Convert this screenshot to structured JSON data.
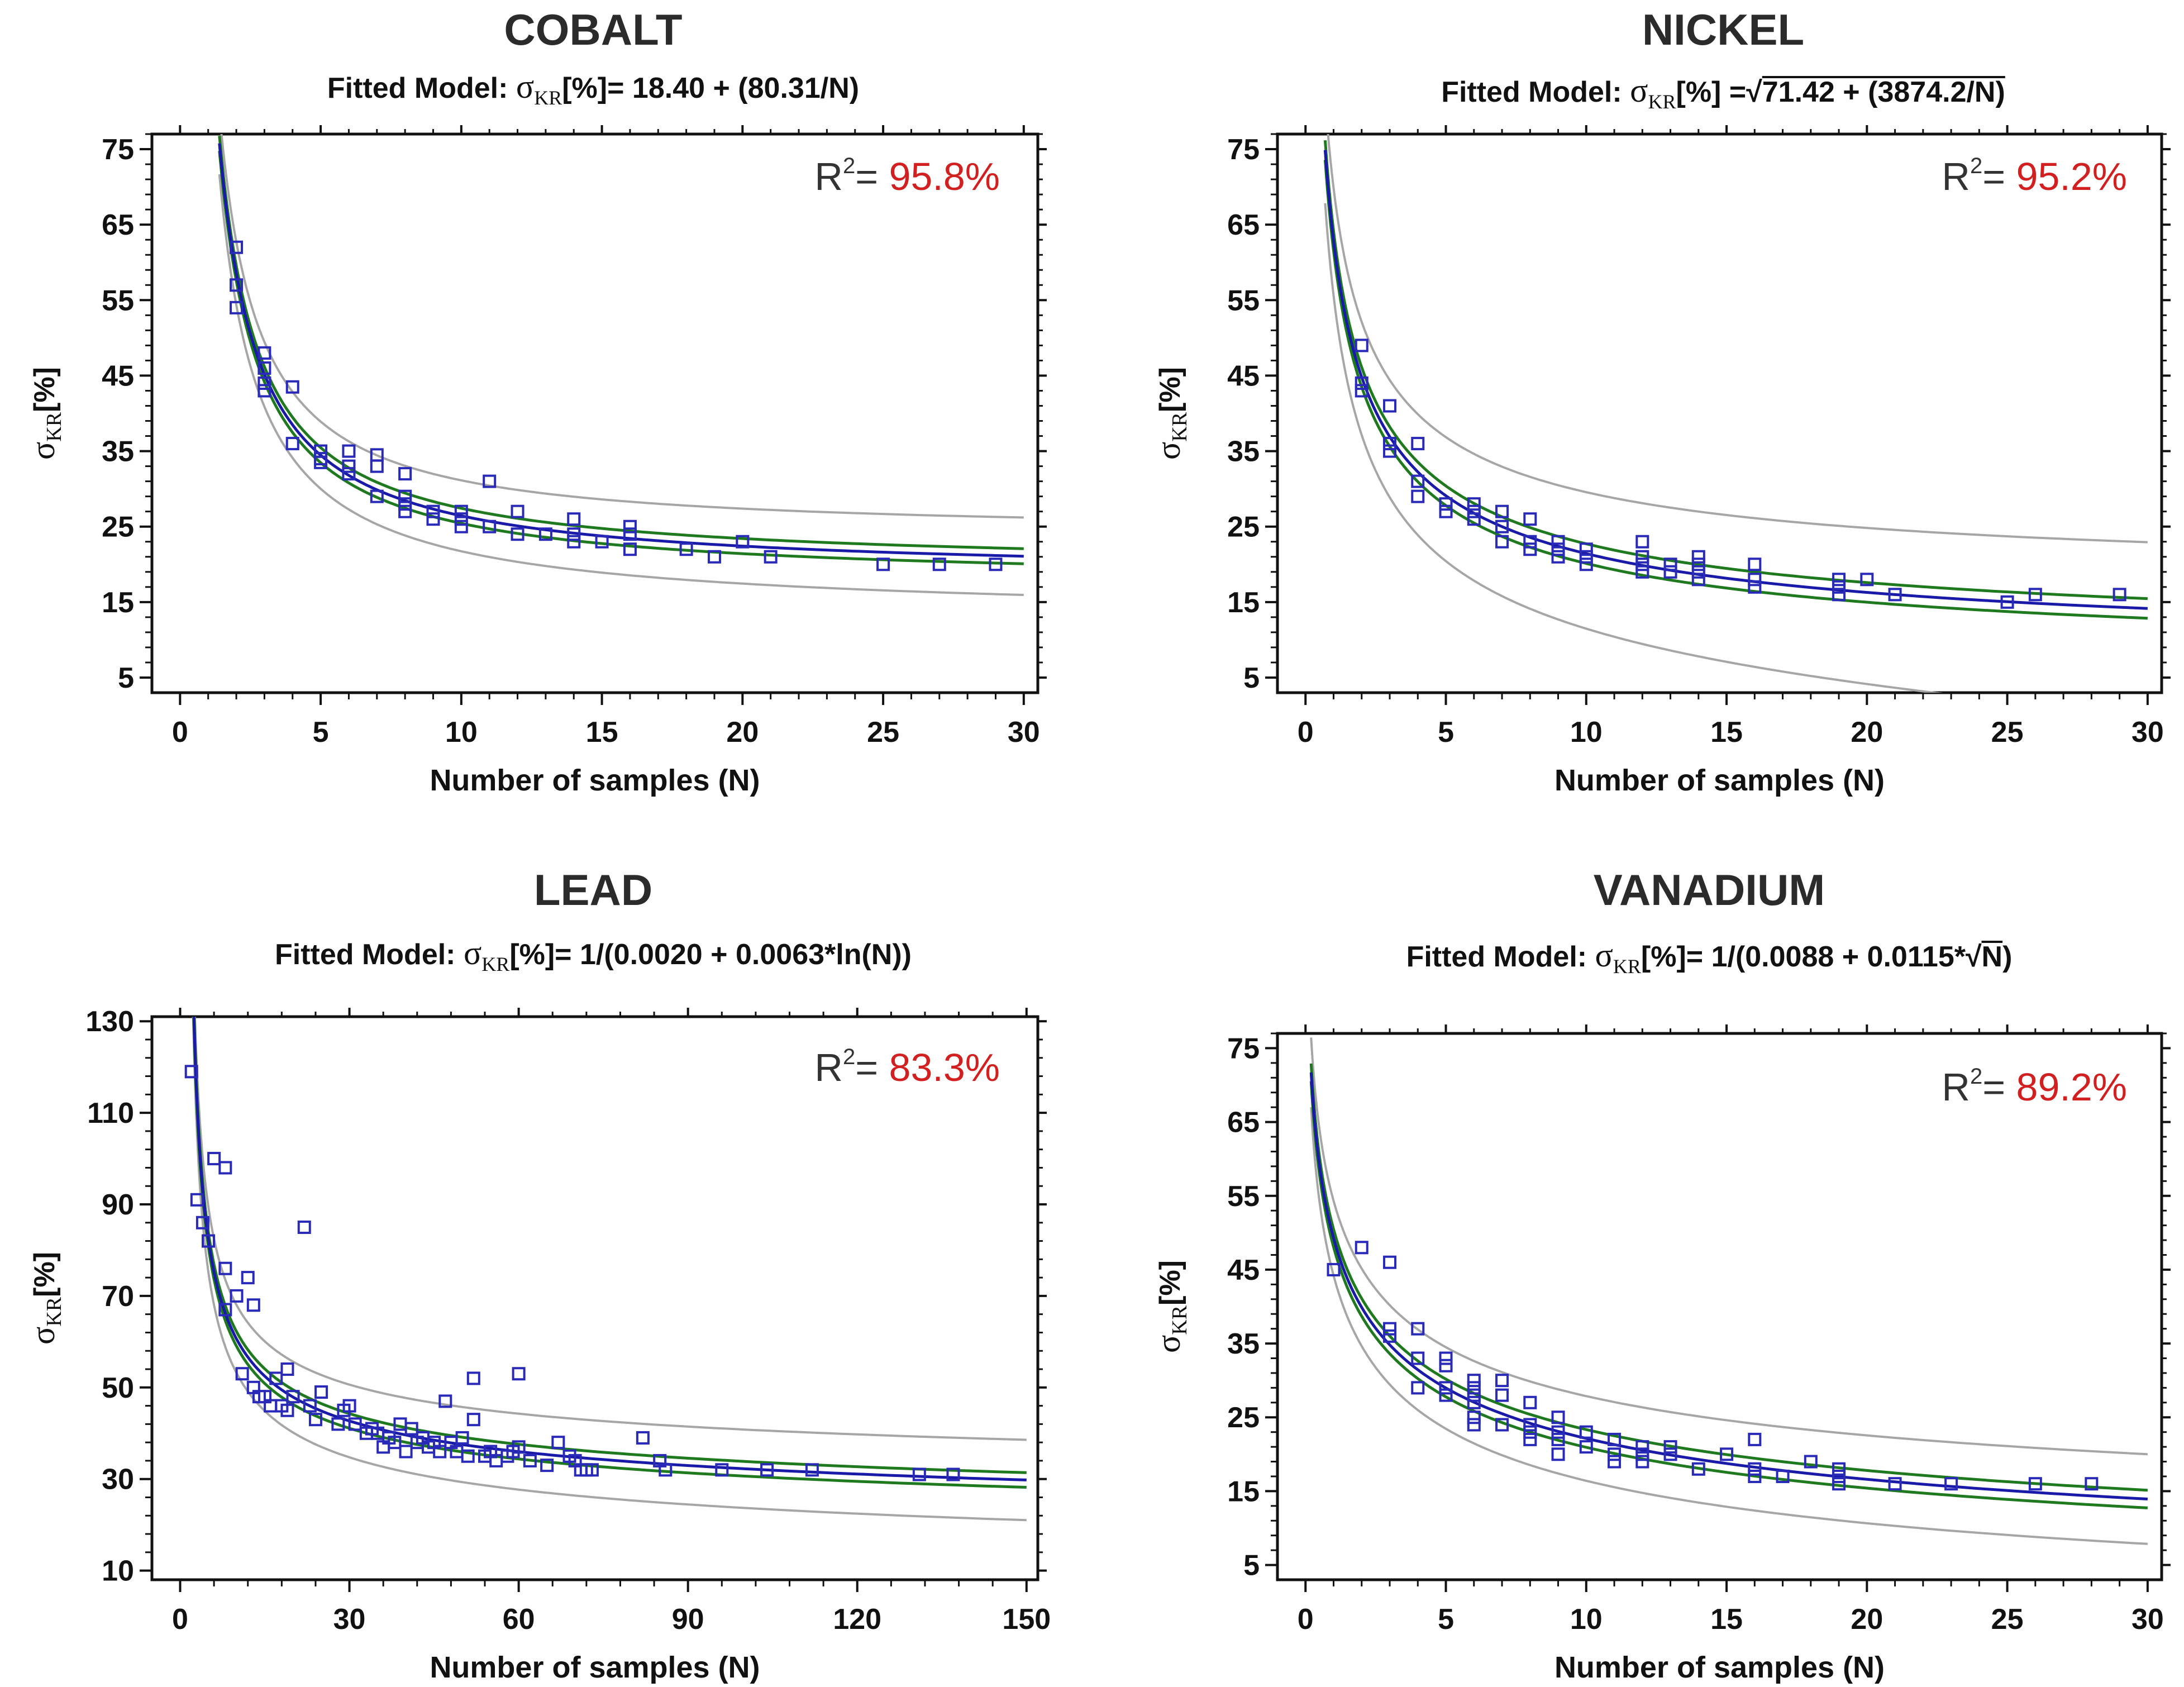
{
  "colors": {
    "fit": "#1a1aa8",
    "ci": "#1f7a1f",
    "pi": "#a6a6a6",
    "points": "#2a2ab8",
    "r2_value": "#d21f1f",
    "text": "#111111"
  },
  "chart_data": [
    {
      "type": "scatter",
      "title": "COBALT",
      "model_prefix": "Fitted Model: ",
      "sigma": "σ",
      "sub": "KR",
      "model_mid": "[%]= 18.40 + (80.31/N)",
      "model_rad": "",
      "model_tail": "",
      "r2_label": "R",
      "r2_sup": "2",
      "r2_eq": "= ",
      "r2_value": "95.8%",
      "xlabel": "Number of samples (N)",
      "ylabel_sigma": "σ",
      "ylabel_sub": "KR",
      "ylabel_rest": "[%]",
      "xlim": [
        -1,
        30.5
      ],
      "ylim": [
        3,
        77
      ],
      "xticks": [
        0,
        5,
        10,
        15,
        20,
        25,
        30
      ],
      "yticks": [
        5,
        15,
        25,
        35,
        45,
        55,
        65,
        75
      ],
      "fit": {
        "type": "inv",
        "a": 18.4,
        "b": 80.31,
        "x0": 1.4,
        "x1": 30
      },
      "ci_width": 1.0,
      "pi_width": 3.8,
      "points": [
        [
          2,
          62
        ],
        [
          2,
          57
        ],
        [
          2,
          54
        ],
        [
          3,
          48
        ],
        [
          3,
          46
        ],
        [
          3,
          44
        ],
        [
          3,
          43
        ],
        [
          4,
          43.5
        ],
        [
          4,
          36
        ],
        [
          5,
          35
        ],
        [
          5,
          34
        ],
        [
          5,
          33.5
        ],
        [
          6,
          35
        ],
        [
          6,
          33
        ],
        [
          6,
          32
        ],
        [
          7,
          34.5
        ],
        [
          7,
          33
        ],
        [
          7,
          29
        ],
        [
          8,
          32
        ],
        [
          8,
          29
        ],
        [
          8,
          28
        ],
        [
          8,
          27
        ],
        [
          9,
          27
        ],
        [
          9,
          26
        ],
        [
          10,
          27
        ],
        [
          10,
          26
        ],
        [
          10,
          25
        ],
        [
          11,
          31
        ],
        [
          11,
          25
        ],
        [
          12,
          27
        ],
        [
          12,
          24
        ],
        [
          13,
          24
        ],
        [
          14,
          26
        ],
        [
          14,
          24
        ],
        [
          14,
          23
        ],
        [
          15,
          23
        ],
        [
          16,
          25
        ],
        [
          16,
          24
        ],
        [
          16,
          22
        ],
        [
          18,
          22
        ],
        [
          19,
          21
        ],
        [
          20,
          23
        ],
        [
          21,
          21
        ],
        [
          25,
          20
        ],
        [
          27,
          20
        ],
        [
          29,
          20
        ]
      ]
    },
    {
      "type": "scatter",
      "title": "NICKEL",
      "model_prefix": "Fitted Model: ",
      "sigma": "σ",
      "sub": "KR",
      "model_mid": "[%] =",
      "model_rad": "71.42 + (3874.2/N)",
      "model_tail": "",
      "r2_label": "R",
      "r2_sup": "2",
      "r2_eq": "= ",
      "r2_value": "95.2%",
      "xlabel": "Number of samples (N)",
      "ylabel_sigma": "σ",
      "ylabel_sub": "KR",
      "ylabel_rest": "[%]",
      "xlim": [
        -1,
        30.5
      ],
      "ylim": [
        3,
        77
      ],
      "xticks": [
        0,
        5,
        10,
        15,
        20,
        25,
        30
      ],
      "yticks": [
        5,
        15,
        25,
        35,
        45,
        55,
        65,
        75
      ],
      "fit": {
        "type": "sqrt",
        "a": 71.42,
        "b": 3874.2,
        "x0": 0.7,
        "x1": 30
      },
      "ci_width": 1.3,
      "pi_width": 6.5,
      "points": [
        [
          2,
          49
        ],
        [
          2,
          44
        ],
        [
          2,
          43
        ],
        [
          3,
          41
        ],
        [
          3,
          36
        ],
        [
          3,
          35
        ],
        [
          4,
          36
        ],
        [
          4,
          31
        ],
        [
          4,
          29
        ],
        [
          5,
          28
        ],
        [
          5,
          27
        ],
        [
          6,
          28
        ],
        [
          6,
          27
        ],
        [
          6,
          26
        ],
        [
          7,
          27
        ],
        [
          7,
          25
        ],
        [
          7,
          23
        ],
        [
          8,
          26
        ],
        [
          8,
          23
        ],
        [
          8,
          22
        ],
        [
          9,
          23
        ],
        [
          9,
          22
        ],
        [
          9,
          21
        ],
        [
          10,
          22
        ],
        [
          10,
          21
        ],
        [
          10,
          20
        ],
        [
          12,
          23
        ],
        [
          12,
          21
        ],
        [
          12,
          20
        ],
        [
          12,
          19
        ],
        [
          13,
          20
        ],
        [
          13,
          19
        ],
        [
          14,
          21
        ],
        [
          14,
          20
        ],
        [
          14,
          19
        ],
        [
          14,
          18
        ],
        [
          16,
          20
        ],
        [
          16,
          18
        ],
        [
          16,
          17
        ],
        [
          19,
          18
        ],
        [
          19,
          17
        ],
        [
          19,
          16
        ],
        [
          20,
          18
        ],
        [
          21,
          16
        ],
        [
          25,
          15
        ],
        [
          26,
          16
        ],
        [
          29,
          16
        ]
      ]
    },
    {
      "type": "scatter",
      "title": "LEAD",
      "model_prefix": "Fitted Model: ",
      "sigma": "σ",
      "sub": "KR",
      "model_mid": "[%]= 1/(0.0020 + 0.0063*ln(N))",
      "model_rad": "",
      "model_tail": "",
      "r2_label": "R",
      "r2_sup": "2",
      "r2_eq": "= ",
      "r2_value": "83.3%",
      "xlabel": "Number of samples (N)",
      "ylabel_sigma": "σ",
      "ylabel_sub": "KR",
      "ylabel_rest": "[%]",
      "xlim": [
        -5,
        152
      ],
      "ylim": [
        8,
        131
      ],
      "xticks": [
        0,
        30,
        60,
        90,
        120,
        150
      ],
      "yticks": [
        10,
        30,
        50,
        70,
        90,
        110,
        130
      ],
      "fit": {
        "type": "ln",
        "a": 0.002,
        "b": 0.0063,
        "x0": 2.2,
        "x1": 150
      },
      "ci_width": 1.6,
      "pi_width": 6.5,
      "points": [
        [
          2,
          119
        ],
        [
          3,
          91
        ],
        [
          4,
          86
        ],
        [
          5,
          82
        ],
        [
          6,
          100
        ],
        [
          8,
          98
        ],
        [
          8,
          76
        ],
        [
          8,
          67
        ],
        [
          10,
          70
        ],
        [
          11,
          53
        ],
        [
          12,
          74
        ],
        [
          13,
          68
        ],
        [
          13,
          50
        ],
        [
          14,
          48
        ],
        [
          15,
          48
        ],
        [
          16,
          46
        ],
        [
          17,
          52
        ],
        [
          18,
          46
        ],
        [
          19,
          45
        ],
        [
          19,
          54
        ],
        [
          20,
          48
        ],
        [
          22,
          85
        ],
        [
          23,
          46
        ],
        [
          24,
          43
        ],
        [
          25,
          49
        ],
        [
          28,
          42
        ],
        [
          29,
          45
        ],
        [
          30,
          46
        ],
        [
          31,
          42
        ],
        [
          33,
          40
        ],
        [
          34,
          41
        ],
        [
          35,
          40
        ],
        [
          36,
          37
        ],
        [
          37,
          39
        ],
        [
          38,
          38
        ],
        [
          39,
          42
        ],
        [
          40,
          36
        ],
        [
          41,
          41
        ],
        [
          42,
          38
        ],
        [
          43,
          39
        ],
        [
          44,
          37
        ],
        [
          45,
          38
        ],
        [
          46,
          36
        ],
        [
          47,
          47
        ],
        [
          48,
          38
        ],
        [
          49,
          36
        ],
        [
          50,
          39
        ],
        [
          51,
          35
        ],
        [
          52,
          43
        ],
        [
          52,
          52
        ],
        [
          54,
          35
        ],
        [
          55,
          36
        ],
        [
          56,
          34
        ],
        [
          58,
          35
        ],
        [
          59,
          36
        ],
        [
          60,
          37
        ],
        [
          60,
          53
        ],
        [
          62,
          34
        ],
        [
          65,
          33
        ],
        [
          67,
          38
        ],
        [
          69,
          35
        ],
        [
          70,
          34
        ],
        [
          71,
          32
        ],
        [
          72,
          32
        ],
        [
          73,
          32
        ],
        [
          82,
          39
        ],
        [
          85,
          34
        ],
        [
          86,
          32
        ],
        [
          96,
          32
        ],
        [
          104,
          32
        ],
        [
          112,
          32
        ],
        [
          131,
          31
        ],
        [
          137,
          31
        ]
      ]
    },
    {
      "type": "scatter",
      "title": "VANADIUM",
      "model_prefix": "Fitted Model: ",
      "sigma": "σ",
      "sub": "KR",
      "model_mid": "[%]= 1/(0.0088 + 0.0115*",
      "model_rad": "N",
      "model_tail": ")",
      "r2_label": "R",
      "r2_sup": "2",
      "r2_eq": "= ",
      "r2_value": "89.2%",
      "xlabel": "Number of samples (N)",
      "ylabel_sigma": "σ",
      "ylabel_sub": "KR",
      "ylabel_rest": "[%]",
      "xlim": [
        -1,
        30.5
      ],
      "ylim": [
        3,
        77
      ],
      "xticks": [
        0,
        5,
        10,
        15,
        20,
        25,
        30
      ],
      "yticks": [
        5,
        15,
        25,
        35,
        45,
        55,
        65,
        75
      ],
      "fit": {
        "type": "isqrt",
        "a": 0.0088,
        "b": 0.0115,
        "x0": 0.2,
        "x1": 30
      },
      "ci_width": 1.2,
      "pi_width": 4.5,
      "points": [
        [
          1,
          45
        ],
        [
          2,
          48
        ],
        [
          3,
          46
        ],
        [
          3,
          37
        ],
        [
          3,
          36
        ],
        [
          4,
          37
        ],
        [
          4,
          33
        ],
        [
          4,
          29
        ],
        [
          5,
          33
        ],
        [
          5,
          32
        ],
        [
          5,
          29
        ],
        [
          5,
          28
        ],
        [
          6,
          30
        ],
        [
          6,
          29
        ],
        [
          6,
          28
        ],
        [
          6,
          27
        ],
        [
          6,
          25
        ],
        [
          6,
          24
        ],
        [
          7,
          30
        ],
        [
          7,
          28
        ],
        [
          7,
          24
        ],
        [
          8,
          27
        ],
        [
          8,
          24
        ],
        [
          8,
          23
        ],
        [
          8,
          22
        ],
        [
          9,
          25
        ],
        [
          9,
          23
        ],
        [
          9,
          22
        ],
        [
          9,
          20
        ],
        [
          10,
          23
        ],
        [
          10,
          21
        ],
        [
          11,
          22
        ],
        [
          11,
          20
        ],
        [
          11,
          19
        ],
        [
          12,
          21
        ],
        [
          12,
          20
        ],
        [
          12,
          19
        ],
        [
          13,
          21
        ],
        [
          13,
          20
        ],
        [
          14,
          18
        ],
        [
          15,
          20
        ],
        [
          16,
          22
        ],
        [
          16,
          18
        ],
        [
          16,
          17
        ],
        [
          17,
          17
        ],
        [
          18,
          19
        ],
        [
          19,
          18
        ],
        [
          19,
          17
        ],
        [
          19,
          16
        ],
        [
          21,
          16
        ],
        [
          23,
          16
        ],
        [
          26,
          16
        ],
        [
          28,
          16
        ]
      ]
    }
  ]
}
